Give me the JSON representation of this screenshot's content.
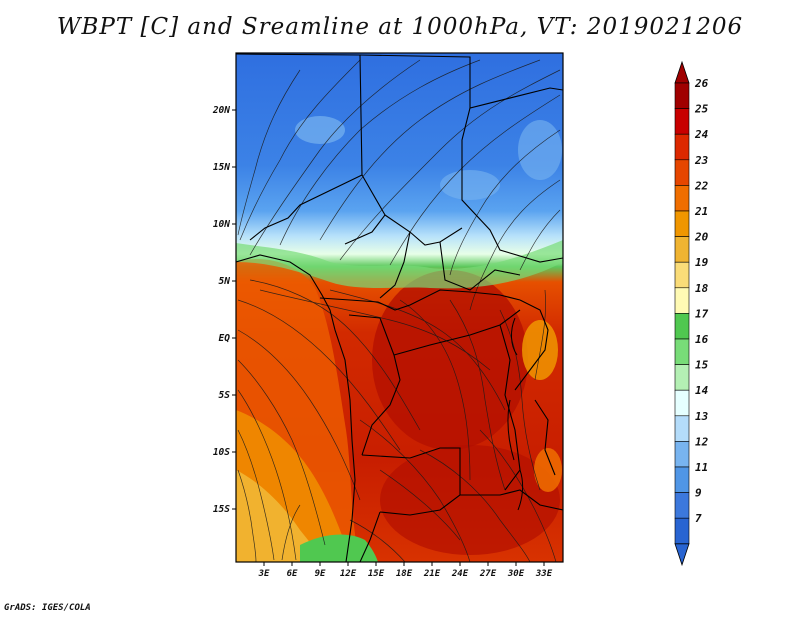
{
  "title": "WBPT [C] and Sreamline at 1000hPa, VT: 2019021206",
  "footer": "GrADS: IGES/COLA",
  "map": {
    "lat_labels": [
      "20N",
      "15N",
      "10N",
      "5N",
      "EQ",
      "5S",
      "10S",
      "15S"
    ],
    "lon_labels": [
      "3E",
      "6E",
      "9E",
      "12E",
      "15E",
      "18E",
      "21E",
      "24E",
      "27E",
      "30E",
      "33E"
    ]
  },
  "colorbar": {
    "labels": [
      "26",
      "25",
      "24",
      "23",
      "22",
      "21",
      "20",
      "19",
      "18",
      "17",
      "16",
      "15",
      "14",
      "13",
      "12",
      "11",
      "9",
      "7"
    ],
    "colors": [
      "#a00000",
      "#c80000",
      "#dc2800",
      "#e64600",
      "#f06e00",
      "#f09600",
      "#f0b432",
      "#fadc78",
      "#fffab4",
      "#50c850",
      "#78dc78",
      "#b4f0b4",
      "#e6ffff",
      "#b4dcfa",
      "#78b4f0",
      "#5096e6",
      "#3c78dc",
      "#2864d2"
    ]
  }
}
